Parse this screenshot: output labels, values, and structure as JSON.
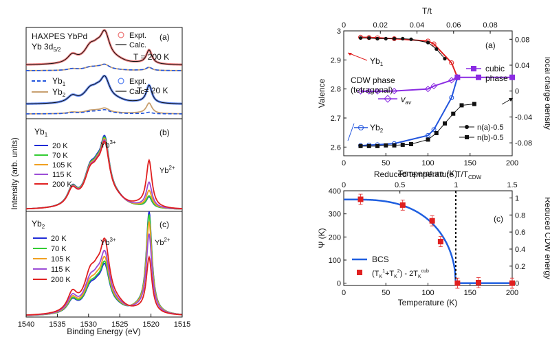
{
  "chart_data": [
    {
      "id": "a",
      "type": "line",
      "panel_label": "(a)",
      "annotations": [
        "HAXPES YbPd",
        "Yb 3d",
        "5/2",
        "T = 200 K",
        "T = 20 K"
      ],
      "legend": [
        "Expt.",
        "Calc.",
        "Yb",
        "1",
        "Yb",
        "2",
        "Expt.",
        "Calc."
      ],
      "xlim": [
        1540,
        1515
      ],
      "colors": {
        "expt": "#e85a5a",
        "calc": "#111111",
        "yb1": "#2255dd",
        "yb2": "#c8a070",
        "expt20": "#3366ee"
      }
    },
    {
      "id": "b",
      "type": "line",
      "panel_label": "(b)",
      "site": [
        "Yb",
        "1"
      ],
      "peak_labels": [
        "Yb",
        "3+",
        "Yb",
        "2+"
      ],
      "series": [
        {
          "name": "20 K",
          "color": "#1f2bd6",
          "yb2_weight": 0.12
        },
        {
          "name": "70 K",
          "color": "#33cc33",
          "yb2_weight": 0.13
        },
        {
          "name": "105 K",
          "color": "#f0a020",
          "yb2_weight": 0.19
        },
        {
          "name": "115 K",
          "color": "#9b4dd6",
          "yb2_weight": 0.28
        },
        {
          "name": "200 K",
          "color": "#e02020",
          "yb2_weight": 0.52
        }
      ]
    },
    {
      "id": "c",
      "type": "line",
      "panel_label": "(c)",
      "site": [
        "Yb",
        "2"
      ],
      "peak_labels": [
        "Yb",
        "3+",
        "Yb",
        "2+"
      ],
      "xlabel": "Binding Energy (eV)",
      "ylabel": "Intensity (arb. units)",
      "xlim": [
        1540,
        1515
      ],
      "xticks": [
        1540,
        1535,
        1530,
        1525,
        1520,
        1515
      ],
      "series": [
        {
          "name": "20 K",
          "color": "#1f2bd6",
          "yb3_weight": 0.67,
          "yb2_weight": 1.0
        },
        {
          "name": "70 K",
          "color": "#33cc33",
          "yb3_weight": 0.7,
          "yb2_weight": 0.97
        },
        {
          "name": "105 K",
          "color": "#f0a020",
          "yb3_weight": 0.76,
          "yb2_weight": 0.9
        },
        {
          "name": "115 K",
          "color": "#9b4dd6",
          "yb3_weight": 0.84,
          "yb2_weight": 0.78
        },
        {
          "name": "200 K",
          "color": "#e02020",
          "yb3_weight": 1.0,
          "yb2_weight": 0.55
        }
      ]
    },
    {
      "id": "d",
      "type": "line",
      "panel_label": "(a)",
      "xlabel": "Temperature (K)",
      "ylabel": "Valence",
      "y2label": "local charge density",
      "top_xlabel": "T/t",
      "xlim": [
        0,
        200
      ],
      "ylim": [
        2.57,
        3.0
      ],
      "y2lim": [
        -0.1,
        0.093
      ],
      "top_xlim": [
        0,
        0.092
      ],
      "xticks": [
        0,
        50,
        100,
        150,
        200
      ],
      "yticks": [
        2.6,
        2.7,
        2.8,
        2.9,
        3.0
      ],
      "y2ticks": [
        -0.08,
        -0.04,
        0.0,
        0.04,
        0.08
      ],
      "top_xticks": [
        0.0,
        0.02,
        0.04,
        0.06,
        0.08
      ],
      "annotations": [
        "CDW phase",
        "(tetragonal)",
        "cubic",
        "phase"
      ],
      "series": [
        {
          "name": [
            "Yb",
            "1"
          ],
          "color": "#e02020",
          "x": [
            20,
            30,
            40,
            60,
            100,
            107,
            128,
            135
          ],
          "y": [
            2.978,
            2.977,
            2.976,
            2.973,
            2.965,
            2.955,
            2.89,
            2.84
          ]
        },
        {
          "name": [
            "Yb",
            "2"
          ],
          "color": "#2255dd",
          "x": [
            20,
            30,
            40,
            60,
            100,
            107,
            128,
            135
          ],
          "y": [
            2.605,
            2.607,
            2.608,
            2.612,
            2.64,
            2.66,
            2.77,
            2.84
          ]
        },
        {
          "name": [
            "v",
            "av"
          ],
          "color": "#8a2be2",
          "x": [
            20,
            30,
            40,
            60,
            100,
            107,
            128,
            135
          ],
          "y": [
            2.792,
            2.792,
            2.792,
            2.793,
            2.8,
            2.81,
            2.83,
            2.84
          ]
        },
        {
          "name": [
            "cubic",
            "phase"
          ],
          "color": "#8a2be2",
          "x": [
            135,
            160,
            200
          ],
          "y": [
            2.84,
            2.84,
            2.84
          ]
        },
        {
          "name": "n(a)-0.5",
          "color": "#111111",
          "x": [
            20,
            30,
            40,
            50,
            60,
            70,
            80,
            100,
            110,
            120
          ],
          "y2": [
            0.082,
            0.082,
            0.081,
            0.081,
            0.081,
            0.081,
            0.08,
            0.075,
            0.065,
            0.05
          ]
        },
        {
          "name": "n(b)-0.5",
          "color": "#111111",
          "x": [
            20,
            30,
            40,
            50,
            60,
            70,
            80,
            100,
            110,
            120,
            130,
            140,
            155
          ],
          "y2": [
            -0.085,
            -0.085,
            -0.085,
            -0.084,
            -0.084,
            -0.083,
            -0.082,
            -0.075,
            -0.065,
            -0.05,
            -0.035,
            -0.022,
            -0.02
          ]
        }
      ]
    },
    {
      "id": "e",
      "type": "scatter",
      "panel_label": "(c)",
      "xlabel": "Temperature (K)",
      "ylabel": "Ψ (K)",
      "y2label": "Reduced CDW energy",
      "top_xlabel": "Reduced temperature T/T",
      "top_xlabel_sub": "CDW",
      "xlim": [
        0,
        200
      ],
      "ylim": [
        -10,
        400
      ],
      "y2lim": [
        -0.027,
        1.084
      ],
      "top_xlim": [
        0,
        1.5
      ],
      "xticks": [
        0,
        50,
        100,
        150,
        200
      ],
      "yticks": [
        0,
        100,
        200,
        300,
        400
      ],
      "y2ticks": [
        0.0,
        0.2,
        0.4,
        0.6,
        0.8,
        1.0
      ],
      "top_xticks": [
        0.0,
        0.5,
        1.0,
        1.5
      ],
      "tcdw": 133,
      "bcs": {
        "name": "BCS",
        "color": "#1f5fe0",
        "psi0": 362
      },
      "points": {
        "name": [
          "(T",
          "K",
          "1",
          "+T",
          "K",
          "2",
          ") - 2T",
          "K",
          "cub"
        ],
        "color": "#e02020",
        "x": [
          20,
          70,
          105,
          115,
          135,
          160,
          200
        ],
        "y": [
          363,
          338,
          270,
          180,
          0,
          2,
          0
        ],
        "err": [
          22,
          22,
          22,
          22,
          22,
          22,
          22
        ]
      }
    }
  ]
}
